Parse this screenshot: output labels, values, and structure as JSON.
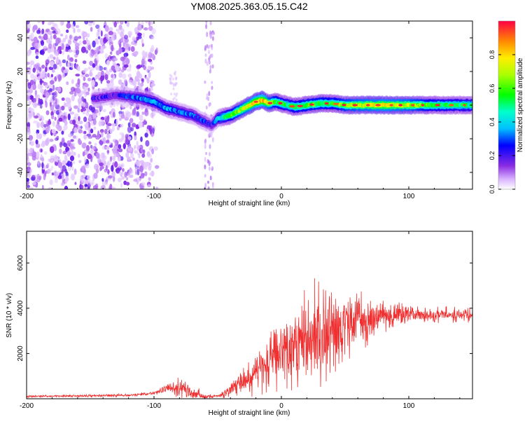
{
  "chart_data": [
    {
      "type": "heatmap",
      "title": "YM08.2025.363.05.15.C42",
      "xlabel": "Height of straight line (km)",
      "ylabel": "Frequency (Hz)",
      "xlim": [
        -200,
        150
      ],
      "ylim": [
        -50,
        50
      ],
      "xticks": [
        -200,
        -100,
        0,
        100
      ],
      "yticks": [
        -40,
        -20,
        0,
        20,
        40
      ],
      "colorbar": {
        "label": "Normalized spectral amplitude",
        "ticks": [
          0.0,
          0.2,
          0.4,
          0.6,
          0.8
        ],
        "range": [
          0,
          1
        ]
      },
      "ridge": {
        "x": [
          -145,
          -130,
          -120,
          -110,
          -100,
          -90,
          -80,
          -70,
          -60,
          -55,
          -50,
          -45,
          -40,
          -35,
          -30,
          -25,
          -20,
          -15,
          -10,
          -5,
          0,
          5,
          10,
          20,
          30,
          40,
          50,
          60,
          80,
          100,
          120,
          150
        ],
        "frequency": [
          4,
          6,
          5,
          4,
          2,
          -2,
          -4,
          -6,
          -10,
          -12,
          -8,
          -7,
          -6,
          -4,
          -2,
          0,
          2,
          3,
          1,
          2,
          1,
          0,
          -1,
          0,
          1,
          1,
          0,
          0,
          0,
          0,
          0,
          0
        ],
        "amplitude": [
          0.2,
          0.2,
          0.25,
          0.3,
          0.35,
          0.35,
          0.3,
          0.3,
          0.25,
          0.2,
          0.35,
          0.5,
          0.55,
          0.65,
          0.7,
          0.75,
          0.8,
          0.85,
          0.7,
          0.6,
          0.55,
          0.5,
          0.55,
          0.6,
          0.6,
          0.55,
          0.65,
          0.7,
          0.75,
          0.7,
          0.55,
          0.5
        ]
      },
      "noise_region_x": [
        -200,
        -100
      ]
    },
    {
      "type": "line",
      "xlabel": "Height of straight line (km)",
      "ylabel": "SNR (10 * v/v)",
      "xlim": [
        -200,
        150
      ],
      "ylim": [
        0,
        7400
      ],
      "xticks": [
        -200,
        -100,
        0,
        100
      ],
      "yticks": [
        2000,
        4000,
        6000
      ],
      "color": "#f03030",
      "envelope": {
        "x": [
          -200,
          -120,
          -100,
          -90,
          -80,
          -70,
          -60,
          -50,
          -40,
          -30,
          -20,
          -10,
          0,
          10,
          20,
          30,
          40,
          50,
          60,
          70,
          80,
          100,
          120,
          150
        ],
        "base": [
          100,
          150,
          250,
          450,
          500,
          250,
          100,
          100,
          400,
          800,
          1200,
          1600,
          2000,
          2400,
          2700,
          2900,
          3000,
          3200,
          3400,
          3600,
          3700,
          3700,
          3700,
          3700
        ],
        "amp": [
          60,
          80,
          100,
          250,
          600,
          500,
          150,
          100,
          400,
          800,
          1200,
          1500,
          1800,
          2200,
          2600,
          2800,
          2600,
          2000,
          1600,
          1200,
          900,
          600,
          450,
          400
        ]
      }
    }
  ]
}
